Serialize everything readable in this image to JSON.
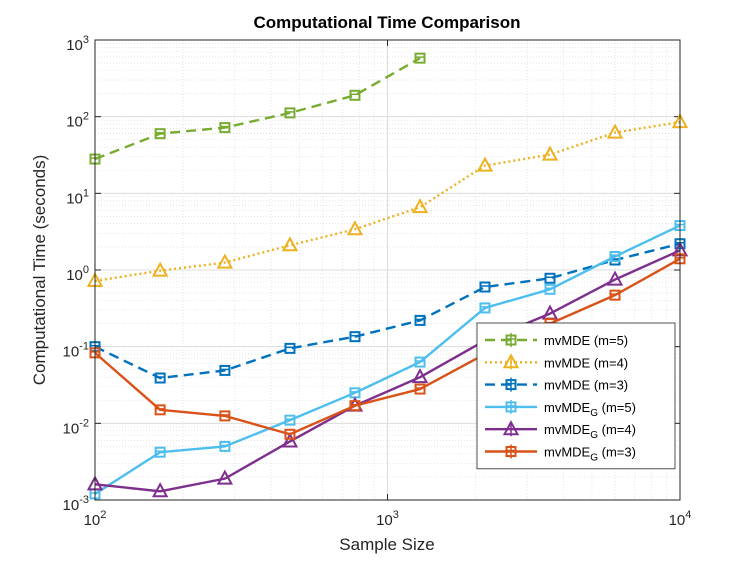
{
  "chart_data": {
    "type": "line",
    "title": "Computational Time Comparison",
    "xlabel": "Sample Size",
    "ylabel": "Computational Time (seconds)",
    "xscale": "log",
    "yscale": "log",
    "xlim": [
      100,
      10000
    ],
    "ylim": [
      0.001,
      1000
    ],
    "grid": true,
    "x_ticks": [
      {
        "base": "10",
        "exp": "2"
      },
      {
        "base": "10",
        "exp": "3"
      },
      {
        "base": "10",
        "exp": "4"
      }
    ],
    "y_ticks": [
      {
        "base": "10",
        "exp": "-3"
      },
      {
        "base": "10",
        "exp": "-2"
      },
      {
        "base": "10",
        "exp": "-1"
      },
      {
        "base": "10",
        "exp": "0"
      },
      {
        "base": "10",
        "exp": "1"
      },
      {
        "base": "10",
        "exp": "2"
      },
      {
        "base": "10",
        "exp": "3"
      }
    ],
    "legend_position": "lower-right",
    "series": [
      {
        "name": "mvMDE (m=5)",
        "legend_main": "mvMDE (m=5)",
        "legend_sub": "",
        "legend_tail": "",
        "color": "#77AC30",
        "dash": "dashed",
        "marker": "square",
        "x": [
          100,
          167,
          278,
          464,
          774,
          1292
        ],
        "y": [
          28,
          60,
          72,
          112,
          190,
          580
        ]
      },
      {
        "name": "mvMDE (m=4)",
        "legend_main": "mvMDE (m=4)",
        "legend_sub": "",
        "legend_tail": "",
        "color": "#EDB120",
        "dash": "dotted",
        "marker": "triangle",
        "x": [
          100,
          167,
          278,
          464,
          774,
          1292,
          2154,
          3594,
          5995,
          10000
        ],
        "y": [
          0.72,
          0.98,
          1.25,
          2.1,
          3.4,
          6.6,
          23,
          32,
          62,
          85
        ]
      },
      {
        "name": "mvMDE (m=3)",
        "legend_main": "mvMDE (m=3)",
        "legend_sub": "",
        "legend_tail": "",
        "color": "#0072BD",
        "dash": "dashed",
        "marker": "square",
        "x": [
          100,
          167,
          278,
          464,
          774,
          1292,
          2154,
          3594,
          5995,
          10000
        ],
        "y": [
          0.1,
          0.039,
          0.049,
          0.095,
          0.135,
          0.22,
          0.6,
          0.78,
          1.35,
          2.2
        ]
      },
      {
        "name": "mvMDE_G (m=5)",
        "legend_main": "mvMDE",
        "legend_sub": "G",
        "legend_tail": " (m=5)",
        "color": "#4DBEEE",
        "dash": "solid",
        "marker": "square",
        "x": [
          100,
          167,
          278,
          464,
          774,
          1292,
          2154,
          3594,
          5995,
          10000
        ],
        "y": [
          0.0012,
          0.0042,
          0.005,
          0.011,
          0.025,
          0.063,
          0.32,
          0.56,
          1.5,
          3.8
        ]
      },
      {
        "name": "mvMDE_G (m=4)",
        "legend_main": "mvMDE",
        "legend_sub": "G",
        "legend_tail": " (m=4)",
        "color": "#7E2F8E",
        "dash": "solid",
        "marker": "triangle",
        "x": [
          100,
          167,
          278,
          464,
          774,
          1292,
          2154,
          3594,
          5995,
          10000
        ],
        "y": [
          0.0016,
          0.0013,
          0.0019,
          0.0058,
          0.017,
          0.04,
          0.12,
          0.27,
          0.75,
          1.8
        ]
      },
      {
        "name": "mvMDE_G (m=3)",
        "legend_main": "mvMDE",
        "legend_sub": "G",
        "legend_tail": " (m=3)",
        "color": "#D95319",
        "dash": "solid",
        "marker": "square",
        "x": [
          100,
          167,
          278,
          464,
          774,
          1292,
          2154,
          3594,
          5995,
          10000
        ],
        "y": [
          0.083,
          0.015,
          0.0125,
          0.0072,
          0.017,
          0.028,
          0.08,
          0.2,
          0.47,
          1.4
        ]
      }
    ]
  }
}
